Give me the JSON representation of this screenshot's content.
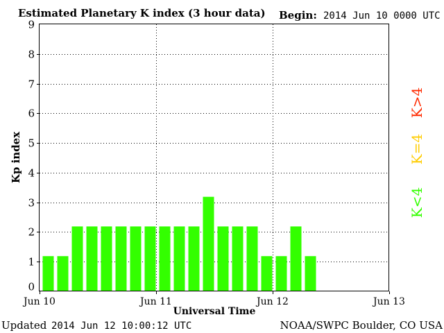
{
  "chart_data": {
    "type": "bar",
    "title": "Estimated Planetary K index (3 hour data)",
    "begin_label": "Begin:",
    "begin_value": "2014 Jun 10 0000 UTC",
    "xlabel": "Universal Time",
    "ylabel": "Kp index",
    "ylim": [
      0,
      9
    ],
    "yticks": [
      "0",
      "1",
      "2",
      "3",
      "4",
      "5",
      "6",
      "7",
      "8",
      "9"
    ],
    "xticks": [
      "Jun 10",
      "Jun 11",
      "Jun 12",
      "Jun 13"
    ],
    "grid": true,
    "interval_hours": 3,
    "values": [
      1,
      1,
      2,
      2,
      2,
      2,
      2,
      2,
      2,
      2,
      2,
      3,
      2,
      2,
      2,
      1,
      1,
      2,
      1
    ],
    "legend": [
      {
        "label": "K>4",
        "color": "#ff2a00"
      },
      {
        "label": "K=4",
        "color": "#ffcc00"
      },
      {
        "label": "K<4",
        "color": "#33ff00"
      }
    ],
    "bar_color": "#33ff00"
  },
  "footer": {
    "updated_label": "Updated",
    "updated_value": "2014 Jun 12 10:00:12 UTC",
    "credit": "NOAA/SWPC Boulder, CO USA"
  }
}
